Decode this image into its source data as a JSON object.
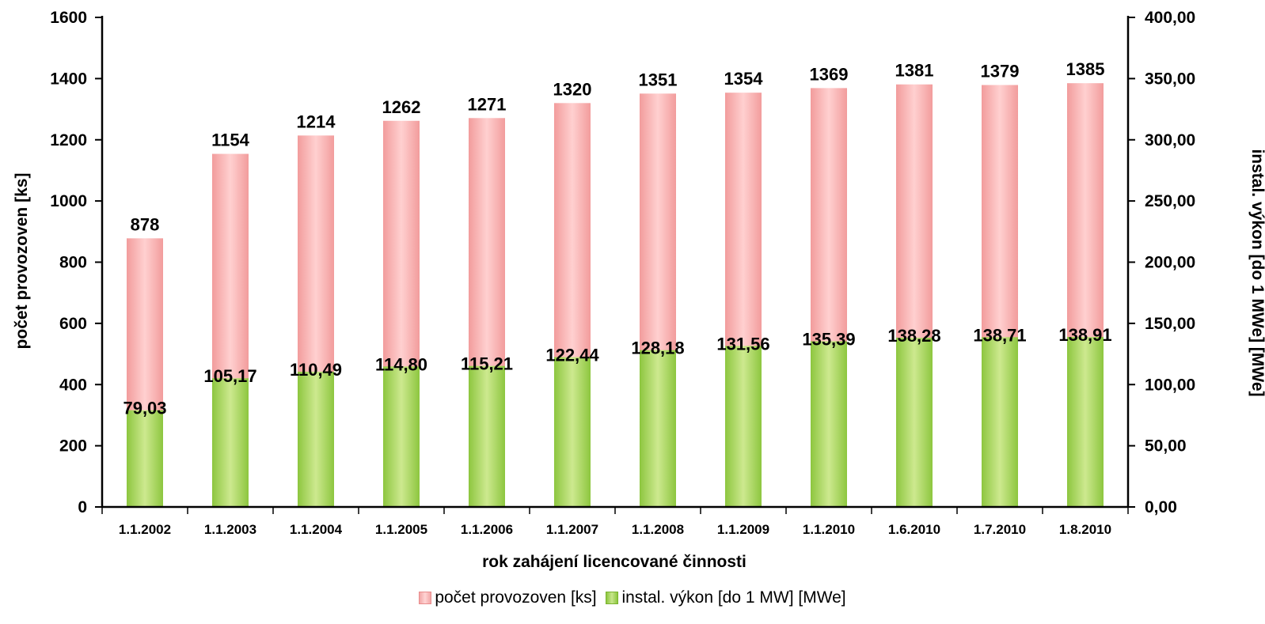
{
  "chart_data": {
    "type": "bar",
    "categories": [
      "1.1.2002",
      "1.1.2003",
      "1.1.2004",
      "1.1.2005",
      "1.1.2006",
      "1.1.2007",
      "1.1.2008",
      "1.1.2009",
      "1.1.2010",
      "1.6.2010",
      "1.7.2010",
      "1.8.2010"
    ],
    "series": [
      {
        "name": "počet provozoven [ks]",
        "axis": "left",
        "color": "#f4a3a3",
        "values": [
          878,
          1154,
          1214,
          1262,
          1271,
          1320,
          1351,
          1354,
          1369,
          1381,
          1379,
          1385
        ],
        "labels": [
          "878",
          "1154",
          "1214",
          "1262",
          "1271",
          "1320",
          "1351",
          "1354",
          "1369",
          "1381",
          "1379",
          "1385"
        ]
      },
      {
        "name": "instal. výkon [do 1 MW] [MWe]",
        "axis": "right",
        "color": "#9ccc44",
        "values": [
          79.03,
          105.17,
          110.49,
          114.8,
          115.21,
          122.44,
          128.18,
          131.56,
          135.39,
          138.28,
          138.71,
          138.91
        ],
        "labels": [
          "79,03",
          "105,17",
          "110,49",
          "114,80",
          "115,21",
          "122,44",
          "128,18",
          "131,56",
          "135,39",
          "138,28",
          "138,71",
          "138,91"
        ]
      }
    ],
    "xlabel": "rok zahájení licencované činnosti",
    "ylabel": "počet provozoven [ks]",
    "ylabel_right": "instal. výkon [do 1 MWe] [MWe]",
    "ylim": [
      0,
      1600
    ],
    "ylim_right": [
      0,
      400
    ],
    "yticks": [
      "0",
      "200",
      "400",
      "600",
      "800",
      "1000",
      "1200",
      "1400",
      "1600"
    ],
    "yticks_right": [
      "0,00",
      "50,00",
      "100,00",
      "150,00",
      "200,00",
      "250,00",
      "300,00",
      "350,00",
      "400,00"
    ],
    "grid": false,
    "legend_position": "bottom"
  },
  "legend": {
    "items": [
      {
        "label": "počet provozoven [ks]"
      },
      {
        "label": "instal. výkon [do 1 MW] [MWe]"
      }
    ]
  }
}
